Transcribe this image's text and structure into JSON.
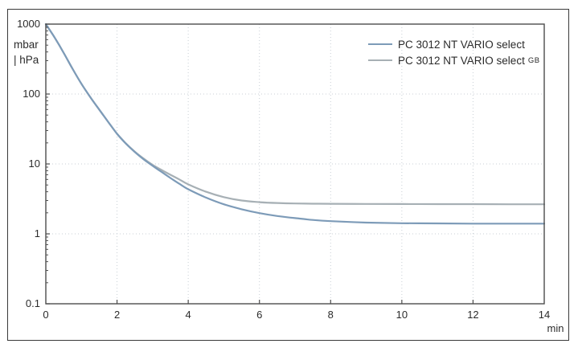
{
  "figure": {
    "background": "#ffffff",
    "frame_color": "#3a3a3a",
    "axis_color": "#4d4d4d",
    "text_color": "#2b2b2b",
    "grid_color": "#c8cfd6"
  },
  "chart_data": {
    "type": "line",
    "title": "",
    "x_axis": {
      "label": "min",
      "ticks": [
        0,
        2,
        4,
        6,
        8,
        10,
        12,
        14
      ],
      "range": [
        0,
        14
      ],
      "scale": "linear"
    },
    "y_axis": {
      "unit_line1": "mbar",
      "unit_line2": "| hPa",
      "ticks": [
        "1000",
        "100",
        "10",
        "1",
        "0.1"
      ],
      "tick_values": [
        1000,
        100,
        10,
        1,
        0.1
      ],
      "range": [
        0.1,
        1000
      ],
      "scale": "log"
    },
    "grid": {
      "visible": true,
      "style": "dotted"
    },
    "legend_position": "top-right",
    "x": [
      0,
      0.25,
      0.5,
      0.75,
      1,
      1.25,
      1.5,
      1.75,
      2,
      2.25,
      2.5,
      2.75,
      3,
      3.25,
      3.5,
      3.75,
      4,
      4.5,
      5,
      5.5,
      6,
      6.5,
      7,
      7.5,
      8,
      9,
      10,
      11,
      12,
      13,
      14
    ],
    "series": [
      {
        "name": "PC 3012 NT VARIO select",
        "suffix": "",
        "color": "#7d9bb8",
        "ultimate_pressure_mbar": 1.4,
        "values": [
          1000,
          640,
          390,
          230,
          140,
          90,
          60,
          40,
          27,
          19.5,
          14.8,
          11.6,
          9.4,
          7.7,
          6.3,
          5.2,
          4.35,
          3.3,
          2.65,
          2.25,
          1.98,
          1.8,
          1.68,
          1.58,
          1.52,
          1.45,
          1.42,
          1.41,
          1.4,
          1.4,
          1.4
        ]
      },
      {
        "name": "PC 3012 NT VARIO select",
        "suffix": "GB",
        "color": "#a7b0b5",
        "ultimate_pressure_mbar": 2.65,
        "values": [
          1000,
          640,
          390,
          230,
          140,
          90,
          60,
          40,
          27,
          19.7,
          15,
          11.9,
          9.7,
          8.2,
          7,
          6,
          5.1,
          4,
          3.35,
          3,
          2.84,
          2.76,
          2.72,
          2.7,
          2.69,
          2.68,
          2.67,
          2.66,
          2.66,
          2.65,
          2.65
        ]
      }
    ]
  }
}
